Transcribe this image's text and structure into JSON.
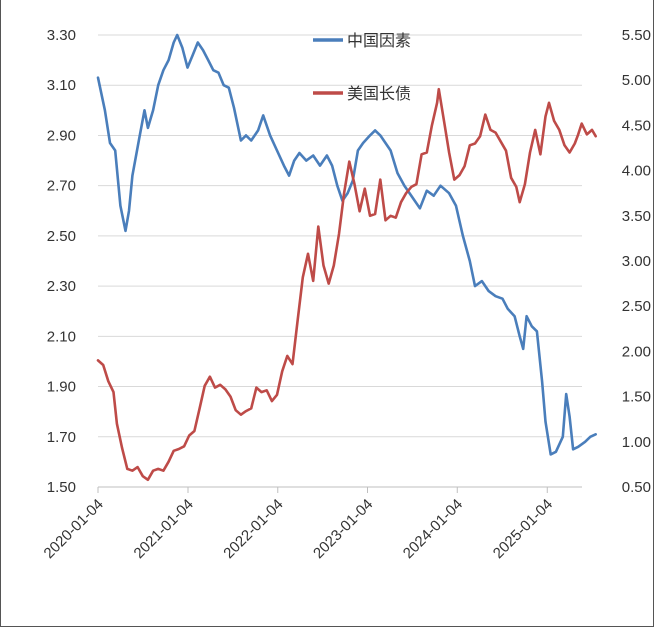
{
  "chart_data": {
    "type": "line",
    "title": "",
    "xlabel": "",
    "ylabel": "",
    "x_tick_labels": [
      "2020-01-04",
      "2021-01-04",
      "2022-01-04",
      "2023-01-04",
      "2024-01-04",
      "2025-01-04"
    ],
    "x_range": [
      "2020-01-04",
      "2025-07-20"
    ],
    "y_left": {
      "lim": [
        1.5,
        3.3
      ],
      "ticks": [
        "1.50",
        "1.70",
        "1.90",
        "2.10",
        "2.30",
        "2.50",
        "2.70",
        "2.90",
        "3.10",
        "3.30"
      ]
    },
    "y_right": {
      "lim": [
        0.5,
        5.5
      ],
      "ticks": [
        "0.50",
        "1.00",
        "1.50",
        "2.00",
        "2.50",
        "3.00",
        "3.50",
        "4.00",
        "4.50",
        "5.00",
        "5.50"
      ]
    },
    "grid": "horizontal",
    "legend_position": "top-center",
    "series": [
      {
        "name": "中国因素",
        "axis": "left",
        "color": "#4a7ebb",
        "points": [
          [
            "2020-01-04",
            3.13
          ],
          [
            "2020-02-01",
            3.0
          ],
          [
            "2020-02-22",
            2.87
          ],
          [
            "2020-03-14",
            2.84
          ],
          [
            "2020-04-04",
            2.62
          ],
          [
            "2020-04-25",
            2.52
          ],
          [
            "2020-05-09",
            2.6
          ],
          [
            "2020-05-23",
            2.74
          ],
          [
            "2020-06-20",
            2.89
          ],
          [
            "2020-07-11",
            3.0
          ],
          [
            "2020-07-25",
            2.93
          ],
          [
            "2020-08-15",
            3.0
          ],
          [
            "2020-09-05",
            3.1
          ],
          [
            "2020-09-26",
            3.16
          ],
          [
            "2020-10-17",
            3.2
          ],
          [
            "2020-11-07",
            3.27
          ],
          [
            "2020-11-21",
            3.3
          ],
          [
            "2020-12-12",
            3.25
          ],
          [
            "2021-01-02",
            3.17
          ],
          [
            "2021-01-23",
            3.22
          ],
          [
            "2021-02-13",
            3.27
          ],
          [
            "2021-03-06",
            3.24
          ],
          [
            "2021-03-27",
            3.2
          ],
          [
            "2021-04-17",
            3.16
          ],
          [
            "2021-05-08",
            3.15
          ],
          [
            "2021-05-29",
            3.1
          ],
          [
            "2021-06-19",
            3.09
          ],
          [
            "2021-07-10",
            3.01
          ],
          [
            "2021-08-07",
            2.88
          ],
          [
            "2021-08-28",
            2.9
          ],
          [
            "2021-09-18",
            2.88
          ],
          [
            "2021-10-16",
            2.92
          ],
          [
            "2021-11-06",
            2.98
          ],
          [
            "2021-12-04",
            2.9
          ],
          [
            "2022-01-01",
            2.84
          ],
          [
            "2022-01-29",
            2.78
          ],
          [
            "2022-02-19",
            2.74
          ],
          [
            "2022-03-12",
            2.8
          ],
          [
            "2022-04-02",
            2.83
          ],
          [
            "2022-04-30",
            2.8
          ],
          [
            "2022-05-28",
            2.82
          ],
          [
            "2022-06-25",
            2.78
          ],
          [
            "2022-07-23",
            2.82
          ],
          [
            "2022-08-13",
            2.78
          ],
          [
            "2022-09-03",
            2.7
          ],
          [
            "2022-09-24",
            2.64
          ],
          [
            "2022-10-15",
            2.67
          ],
          [
            "2022-11-05",
            2.72
          ],
          [
            "2022-11-26",
            2.84
          ],
          [
            "2022-12-17",
            2.87
          ],
          [
            "2023-01-14",
            2.9
          ],
          [
            "2023-02-04",
            2.92
          ],
          [
            "2023-02-25",
            2.9
          ],
          [
            "2023-03-18",
            2.87
          ],
          [
            "2023-04-08",
            2.84
          ],
          [
            "2023-05-06",
            2.75
          ],
          [
            "2023-06-03",
            2.7
          ],
          [
            "2023-07-01",
            2.66
          ],
          [
            "2023-08-05",
            2.61
          ],
          [
            "2023-09-02",
            2.68
          ],
          [
            "2023-09-30",
            2.66
          ],
          [
            "2023-10-28",
            2.7
          ],
          [
            "2023-12-02",
            2.67
          ],
          [
            "2023-12-30",
            2.62
          ],
          [
            "2024-01-27",
            2.5
          ],
          [
            "2024-02-24",
            2.4
          ],
          [
            "2024-03-16",
            2.3
          ],
          [
            "2024-04-13",
            2.32
          ],
          [
            "2024-05-11",
            2.28
          ],
          [
            "2024-06-08",
            2.26
          ],
          [
            "2024-07-06",
            2.25
          ],
          [
            "2024-07-27",
            2.21
          ],
          [
            "2024-08-24",
            2.18
          ],
          [
            "2024-09-14",
            2.1
          ],
          [
            "2024-09-28",
            2.05
          ],
          [
            "2024-10-12",
            2.18
          ],
          [
            "2024-11-02",
            2.14
          ],
          [
            "2024-11-23",
            2.12
          ],
          [
            "2024-12-14",
            1.92
          ],
          [
            "2024-12-28",
            1.76
          ],
          [
            "2025-01-18",
            1.63
          ],
          [
            "2025-02-08",
            1.64
          ],
          [
            "2025-03-08",
            1.7
          ],
          [
            "2025-03-22",
            1.87
          ],
          [
            "2025-04-05",
            1.78
          ],
          [
            "2025-04-19",
            1.65
          ],
          [
            "2025-05-10",
            1.66
          ],
          [
            "2025-06-07",
            1.68
          ],
          [
            "2025-06-28",
            1.7
          ],
          [
            "2025-07-20",
            1.71
          ]
        ]
      },
      {
        "name": "美国长债",
        "axis": "right",
        "color": "#be4b48",
        "points": [
          [
            "2020-01-04",
            1.9
          ],
          [
            "2020-01-25",
            1.85
          ],
          [
            "2020-02-15",
            1.67
          ],
          [
            "2020-03-07",
            1.55
          ],
          [
            "2020-03-21",
            1.2
          ],
          [
            "2020-04-11",
            0.93
          ],
          [
            "2020-05-02",
            0.7
          ],
          [
            "2020-05-23",
            0.68
          ],
          [
            "2020-06-13",
            0.72
          ],
          [
            "2020-07-04",
            0.62
          ],
          [
            "2020-07-25",
            0.58
          ],
          [
            "2020-08-15",
            0.68
          ],
          [
            "2020-09-05",
            0.7
          ],
          [
            "2020-09-26",
            0.68
          ],
          [
            "2020-10-17",
            0.78
          ],
          [
            "2020-11-07",
            0.9
          ],
          [
            "2020-11-28",
            0.92
          ],
          [
            "2020-12-19",
            0.95
          ],
          [
            "2021-01-09",
            1.07
          ],
          [
            "2021-01-30",
            1.12
          ],
          [
            "2021-02-20",
            1.37
          ],
          [
            "2021-03-13",
            1.62
          ],
          [
            "2021-04-03",
            1.72
          ],
          [
            "2021-04-24",
            1.6
          ],
          [
            "2021-05-15",
            1.63
          ],
          [
            "2021-06-05",
            1.58
          ],
          [
            "2021-06-26",
            1.5
          ],
          [
            "2021-07-17",
            1.35
          ],
          [
            "2021-08-07",
            1.3
          ],
          [
            "2021-08-28",
            1.34
          ],
          [
            "2021-09-18",
            1.37
          ],
          [
            "2021-10-09",
            1.6
          ],
          [
            "2021-10-30",
            1.55
          ],
          [
            "2021-11-20",
            1.57
          ],
          [
            "2021-12-11",
            1.45
          ],
          [
            "2022-01-01",
            1.52
          ],
          [
            "2022-01-22",
            1.78
          ],
          [
            "2022-02-12",
            1.95
          ],
          [
            "2022-03-05",
            1.86
          ],
          [
            "2022-03-26",
            2.35
          ],
          [
            "2022-04-16",
            2.82
          ],
          [
            "2022-05-07",
            3.08
          ],
          [
            "2022-05-28",
            2.78
          ],
          [
            "2022-06-18",
            3.38
          ],
          [
            "2022-07-09",
            2.95
          ],
          [
            "2022-07-30",
            2.75
          ],
          [
            "2022-08-20",
            2.95
          ],
          [
            "2022-09-10",
            3.3
          ],
          [
            "2022-10-01",
            3.75
          ],
          [
            "2022-10-22",
            4.1
          ],
          [
            "2022-11-12",
            3.85
          ],
          [
            "2022-12-03",
            3.55
          ],
          [
            "2022-12-24",
            3.8
          ],
          [
            "2023-01-14",
            3.5
          ],
          [
            "2023-02-04",
            3.52
          ],
          [
            "2023-02-25",
            3.9
          ],
          [
            "2023-03-18",
            3.45
          ],
          [
            "2023-04-08",
            3.5
          ],
          [
            "2023-04-29",
            3.48
          ],
          [
            "2023-05-20",
            3.65
          ],
          [
            "2023-06-10",
            3.75
          ],
          [
            "2023-07-01",
            3.82
          ],
          [
            "2023-07-22",
            3.85
          ],
          [
            "2023-08-12",
            4.18
          ],
          [
            "2023-09-02",
            4.2
          ],
          [
            "2023-09-23",
            4.5
          ],
          [
            "2023-10-14",
            4.75
          ],
          [
            "2023-10-21",
            4.9
          ],
          [
            "2023-11-11",
            4.55
          ],
          [
            "2023-12-02",
            4.2
          ],
          [
            "2023-12-23",
            3.9
          ],
          [
            "2024-01-13",
            3.95
          ],
          [
            "2024-02-03",
            4.05
          ],
          [
            "2024-02-24",
            4.28
          ],
          [
            "2024-03-16",
            4.3
          ],
          [
            "2024-04-06",
            4.38
          ],
          [
            "2024-04-27",
            4.62
          ],
          [
            "2024-05-18",
            4.45
          ],
          [
            "2024-06-08",
            4.42
          ],
          [
            "2024-06-29",
            4.32
          ],
          [
            "2024-07-20",
            4.22
          ],
          [
            "2024-08-10",
            3.92
          ],
          [
            "2024-08-31",
            3.82
          ],
          [
            "2024-09-14",
            3.65
          ],
          [
            "2024-10-05",
            3.85
          ],
          [
            "2024-10-26",
            4.2
          ],
          [
            "2024-11-16",
            4.45
          ],
          [
            "2024-12-07",
            4.18
          ],
          [
            "2024-12-28",
            4.6
          ],
          [
            "2025-01-11",
            4.75
          ],
          [
            "2025-02-01",
            4.55
          ],
          [
            "2025-02-22",
            4.45
          ],
          [
            "2025-03-15",
            4.28
          ],
          [
            "2025-04-05",
            4.2
          ],
          [
            "2025-04-26",
            4.3
          ],
          [
            "2025-05-10",
            4.4
          ],
          [
            "2025-05-24",
            4.52
          ],
          [
            "2025-06-14",
            4.4
          ],
          [
            "2025-07-05",
            4.45
          ],
          [
            "2025-07-20",
            4.38
          ]
        ]
      }
    ]
  }
}
